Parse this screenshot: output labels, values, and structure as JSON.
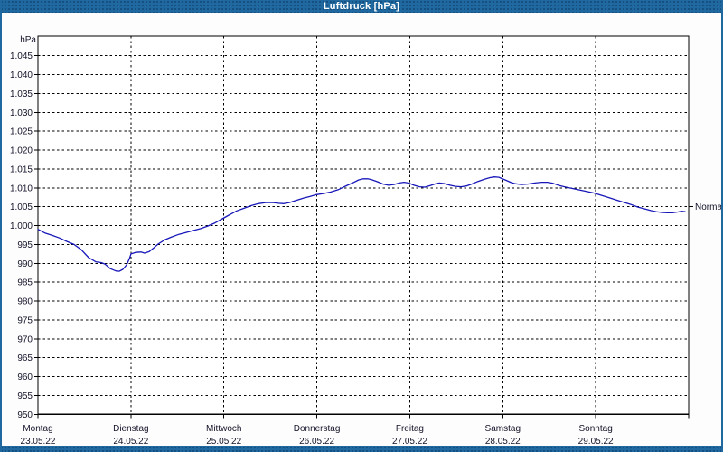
{
  "window": {
    "title": "Luftdruck [hPa]"
  },
  "colors": {
    "titlebar_bg": "#2069a0",
    "frame": "#2069a0",
    "title_text": "#ffffff",
    "plot_bg": "#ffffff",
    "grid": "#000000",
    "axis": "#000000",
    "label_text": "#14142a",
    "line": "#1717b9"
  },
  "chart_data": {
    "type": "line",
    "title": "Luftdruck [hPa]",
    "y_unit_label": "hPa",
    "ylim": [
      950,
      1045
    ],
    "ytick_step": 5,
    "grid": "dashed",
    "legend": "none",
    "yticks": [
      [
        1045,
        "1.045"
      ],
      [
        1040,
        "1.040"
      ],
      [
        1035,
        "1.035"
      ],
      [
        1030,
        "1.030"
      ],
      [
        1025,
        "1.025"
      ],
      [
        1020,
        "1.020"
      ],
      [
        1015,
        "1.015"
      ],
      [
        1010,
        "1.010"
      ],
      [
        1005,
        "1.005"
      ],
      [
        1000,
        "1.000"
      ],
      [
        995,
        "995"
      ],
      [
        990,
        "990"
      ],
      [
        985,
        "985"
      ],
      [
        980,
        "980"
      ],
      [
        975,
        "975"
      ],
      [
        970,
        "970"
      ],
      [
        965,
        "965"
      ],
      [
        960,
        "960"
      ],
      [
        955,
        "955"
      ],
      [
        950,
        "950"
      ]
    ],
    "x_days": [
      {
        "name": "Montag",
        "date": "23.05.22"
      },
      {
        "name": "Dienstag",
        "date": "24.05.22"
      },
      {
        "name": "Mittwoch",
        "date": "25.05.22"
      },
      {
        "name": "Donnerstag",
        "date": "26.05.22"
      },
      {
        "name": "Freitag",
        "date": "27.05.22"
      },
      {
        "name": "Samstag",
        "date": "28.05.22"
      },
      {
        "name": "Sonntag",
        "date": "29.05.22"
      }
    ],
    "annotations": [
      {
        "label": "Normal",
        "value": 1005
      }
    ],
    "series": [
      {
        "name": "Luftdruck",
        "unit": "hPa",
        "x_unit": "hours_since_monday_00",
        "points": [
          [
            0,
            999.0
          ],
          [
            1.9,
            998.0
          ],
          [
            3.7,
            997.4
          ],
          [
            5.6,
            996.7
          ],
          [
            7.5,
            995.8
          ],
          [
            9.3,
            995.0
          ],
          [
            11.2,
            993.6
          ],
          [
            13.1,
            991.5
          ],
          [
            14.9,
            990.4
          ],
          [
            16.3,
            990.2
          ],
          [
            17.3,
            989.8
          ],
          [
            18.7,
            988.6
          ],
          [
            20.1,
            988.0
          ],
          [
            21.0,
            987.9
          ],
          [
            21.9,
            988.4
          ],
          [
            22.9,
            989.6
          ],
          [
            23.6,
            991.2
          ],
          [
            24.0,
            992.5
          ],
          [
            25.2,
            992.9
          ],
          [
            26.6,
            993.0
          ],
          [
            27.5,
            992.7
          ],
          [
            28.7,
            993.1
          ],
          [
            29.9,
            994.1
          ],
          [
            31.0,
            995.1
          ],
          [
            32.7,
            996.2
          ],
          [
            34.5,
            997.0
          ],
          [
            36.4,
            997.7
          ],
          [
            38.3,
            998.2
          ],
          [
            40.1,
            998.7
          ],
          [
            42.0,
            999.2
          ],
          [
            43.9,
            999.9
          ],
          [
            45.7,
            1000.7
          ],
          [
            47.6,
            1001.8
          ],
          [
            49.5,
            1002.9
          ],
          [
            51.3,
            1003.9
          ],
          [
            53.2,
            1004.6
          ],
          [
            55.1,
            1005.3
          ],
          [
            56.9,
            1005.8
          ],
          [
            58.8,
            1006.1
          ],
          [
            60.7,
            1006.1
          ],
          [
            62.1,
            1005.9
          ],
          [
            63.5,
            1005.8
          ],
          [
            64.9,
            1006.1
          ],
          [
            66.7,
            1006.7
          ],
          [
            68.6,
            1007.3
          ],
          [
            70.2,
            1007.7
          ],
          [
            71.9,
            1008.2
          ],
          [
            73.7,
            1008.5
          ],
          [
            75.6,
            1008.9
          ],
          [
            77.5,
            1009.5
          ],
          [
            79.3,
            1010.4
          ],
          [
            81.2,
            1011.3
          ],
          [
            82.8,
            1012.1
          ],
          [
            84.0,
            1012.4
          ],
          [
            85.2,
            1012.4
          ],
          [
            86.3,
            1012.1
          ],
          [
            87.7,
            1011.6
          ],
          [
            89.1,
            1011.0
          ],
          [
            90.5,
            1010.7
          ],
          [
            91.9,
            1010.9
          ],
          [
            93.3,
            1011.3
          ],
          [
            94.5,
            1011.5
          ],
          [
            95.7,
            1011.3
          ],
          [
            97.1,
            1010.7
          ],
          [
            98.5,
            1010.3
          ],
          [
            99.9,
            1010.2
          ],
          [
            101.3,
            1010.6
          ],
          [
            102.7,
            1011.1
          ],
          [
            103.6,
            1011.3
          ],
          [
            105.0,
            1011.1
          ],
          [
            106.4,
            1010.7
          ],
          [
            107.8,
            1010.4
          ],
          [
            109.2,
            1010.3
          ],
          [
            110.6,
            1010.5
          ],
          [
            112.0,
            1011.0
          ],
          [
            113.6,
            1011.7
          ],
          [
            115.3,
            1012.3
          ],
          [
            116.7,
            1012.7
          ],
          [
            117.8,
            1012.9
          ],
          [
            119.0,
            1012.8
          ],
          [
            119.7,
            1012.5
          ],
          [
            120.9,
            1012.0
          ],
          [
            122.0,
            1011.5
          ],
          [
            123.2,
            1011.1
          ],
          [
            124.8,
            1010.9
          ],
          [
            126.5,
            1011.0
          ],
          [
            128.3,
            1011.3
          ],
          [
            130.0,
            1011.5
          ],
          [
            131.6,
            1011.5
          ],
          [
            133.0,
            1011.2
          ],
          [
            134.6,
            1010.6
          ],
          [
            136.3,
            1010.2
          ],
          [
            137.7,
            1009.9
          ],
          [
            139.1,
            1009.6
          ],
          [
            140.5,
            1009.3
          ],
          [
            141.9,
            1009.0
          ],
          [
            143.3,
            1008.7
          ],
          [
            144.0,
            1008.5
          ],
          [
            145.6,
            1008.0
          ],
          [
            147.5,
            1007.4
          ],
          [
            149.3,
            1006.8
          ],
          [
            151.2,
            1006.2
          ],
          [
            153.1,
            1005.6
          ],
          [
            154.9,
            1004.9
          ],
          [
            156.8,
            1004.4
          ],
          [
            158.2,
            1004.0
          ],
          [
            159.6,
            1003.7
          ],
          [
            161.0,
            1003.5
          ],
          [
            162.4,
            1003.4
          ],
          [
            163.8,
            1003.4
          ],
          [
            165.2,
            1003.6
          ],
          [
            166.1,
            1003.8
          ],
          [
            167.1,
            1003.7
          ]
        ]
      }
    ]
  }
}
